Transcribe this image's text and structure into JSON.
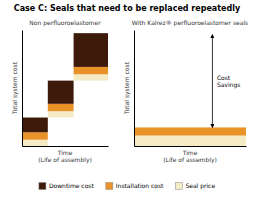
{
  "title": "Case C: Seals that need to be replaced repeatedly",
  "chart_data": [
    {
      "type": "waterfall",
      "title": "Non perfluoroelastomer",
      "x_label": "Time\n(Life of assembly)",
      "y_label": "Total system cost",
      "stacked": true,
      "bins": [
        0.0,
        0.3,
        0.6,
        1.0
      ],
      "series": [
        {
          "name": "Downtime cost",
          "color": "#3d1a09",
          "values": [
            0.14,
            0.22,
            0.32
          ]
        },
        {
          "name": "Installation cost",
          "color": "#e89228",
          "values": [
            0.07,
            0.07,
            0.07
          ]
        },
        {
          "name": "Seal price",
          "color": "#f5ecc5",
          "values": [
            0.06,
            0.06,
            0.06
          ]
        }
      ],
      "xlim": [
        0,
        1
      ],
      "ylim": [
        0,
        1.1
      ],
      "xticks": [],
      "yticks": [],
      "tick_labels": false,
      "legend": "bottom"
    },
    {
      "type": "waterfall",
      "title": "With Kalrez® perfluoroelastomer seals",
      "x_label": "Time\n(Life of assembly)",
      "y_label": "Total system cost",
      "stacked": true,
      "bins": [
        0,
        1
      ],
      "series": [
        {
          "name": "Installation cost",
          "color": "#e89228",
          "values": [
            0.07
          ]
        },
        {
          "name": "Seal price",
          "color": "#f5ecc5",
          "values": [
            0.09
          ]
        }
      ],
      "xlim": [
        0,
        1
      ],
      "ylim": [
        0,
        1.0
      ],
      "xticks": [],
      "yticks": [],
      "tick_labels": false,
      "annotations": [
        {
          "text": "Cost\nSavings",
          "x": 0.74,
          "y": 0.56,
          "arrow_x": 0.7,
          "arrow_y": [
            0.96,
            0.16
          ]
        }
      ]
    }
  ]
}
